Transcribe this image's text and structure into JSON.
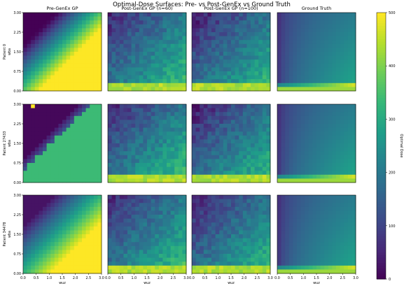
{
  "chart_data": {
    "type": "heatmap",
    "title": "Optimal-Dose Surfaces: Pre- vs Post-GenEx vs Ground Truth",
    "column_titles": [
      "Pre-GenEx GP",
      "Post-GenEx GP (n=60)",
      "Post-GenEx GP (n=100)",
      "Ground Truth"
    ],
    "row_labels": [
      "Patient 0",
      "Patient 27433",
      "Patient 34478"
    ],
    "xlabel": "w_uz",
    "xlabel_display": "wuz",
    "ylabel": "w_ba",
    "ylabel_display": "wba",
    "x_range": [
      0.0,
      3.0
    ],
    "y_range": [
      0.0,
      3.0
    ],
    "x_ticks": [
      "0.0",
      "0.5",
      "1.0",
      "1.5",
      "2.0",
      "2.5",
      "3.0"
    ],
    "y_ticks": [
      "0.00",
      "0.75",
      "1.50",
      "2.25",
      "3.00"
    ],
    "colorbar": {
      "label": "Optimal Dose",
      "range": [
        0,
        500
      ],
      "ticks": [
        "0",
        "100",
        "200",
        "300",
        "400",
        "500"
      ],
      "colormap": "viridis"
    },
    "grid": false,
    "panels_description_values": {
      "pre_genex_patient0_upper_left": 0,
      "pre_genex_patient0_lower_right": 500,
      "ground_truth_low_wba_band": 450
    }
  }
}
